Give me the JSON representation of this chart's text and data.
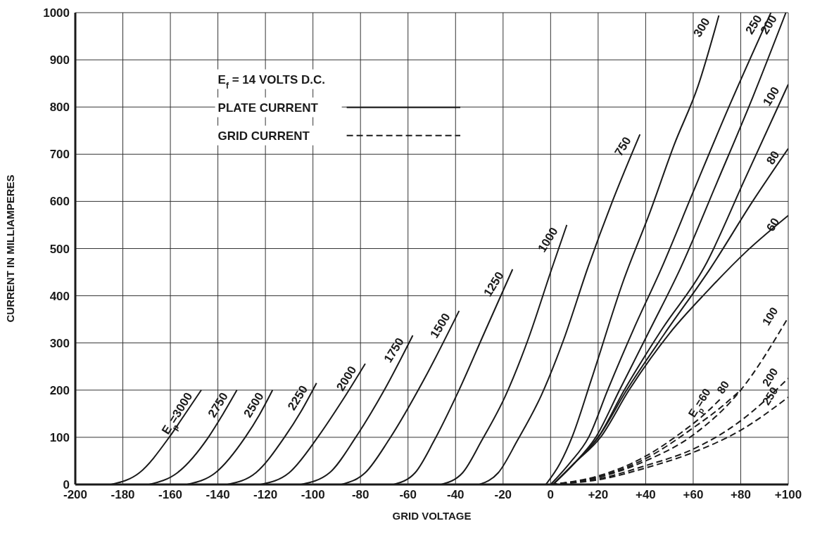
{
  "chart_data": {
    "type": "line",
    "xlabel": "GRID VOLTAGE",
    "ylabel": "CURRENT IN MILLIAMPERES",
    "xlim": [
      -200,
      100
    ],
    "xticks": [
      -200,
      -180,
      -160,
      -140,
      -120,
      -100,
      -80,
      -60,
      -40,
      -20,
      0,
      {
        "value": 20,
        "label": "+20"
      },
      {
        "value": 40,
        "label": "+40"
      },
      {
        "value": 60,
        "label": "+60"
      },
      {
        "value": 80,
        "label": "+80"
      },
      {
        "value": 100,
        "label": "+100"
      }
    ],
    "ylim": [
      0,
      1000
    ],
    "yticks": [
      0,
      100,
      200,
      300,
      400,
      500,
      600,
      700,
      800,
      900,
      1000
    ],
    "grid": true,
    "legend": false,
    "marker": "none",
    "line_style": "solid",
    "annotations": [
      "E$_{f}$ = 14 VOLTS D.C.",
      "PLATE CURRENT",
      "GRID CURRENT"
    ],
    "series": [
      {
        "name": "E$_{p}$=3000",
        "color": "#1a1a1a",
        "x": [
          -185,
          -173,
          -160.5,
          -154,
          -147
        ],
        "values": [
          0,
          25,
          100,
          148,
          200
        ]
      },
      {
        "name": "2750",
        "color": "#1a1a1a",
        "x": [
          -169,
          -157,
          -144,
          -138,
          -132
        ],
        "values": [
          0,
          25,
          100,
          148,
          200
        ]
      },
      {
        "name": "2500",
        "color": "#1a1a1a",
        "x": [
          -153,
          -141,
          -128.5,
          -122.5,
          -117
        ],
        "values": [
          0,
          25,
          100,
          148,
          200
        ]
      },
      {
        "name": "2250",
        "color": "#1a1a1a",
        "x": [
          -136,
          -124,
          -112,
          -105,
          -98.5
        ],
        "values": [
          0,
          25,
          100,
          155,
          215
        ]
      },
      {
        "name": "2000",
        "color": "#1a1a1a",
        "x": [
          -122,
          -110,
          -98,
          -88,
          -78
        ],
        "values": [
          0,
          25,
          100,
          175,
          256
        ]
      },
      {
        "name": "1750",
        "color": "#1a1a1a",
        "x": [
          -105,
          -93,
          -82,
          -70,
          -58
        ],
        "values": [
          0,
          25,
          100,
          200,
          316
        ]
      },
      {
        "name": "1500",
        "color": "#1a1a1a",
        "x": [
          -88,
          -78,
          -68,
          -53,
          -38.5
        ],
        "values": [
          0,
          25,
          95,
          225,
          368
        ]
      },
      {
        "name": "1250",
        "color": "#1a1a1a",
        "x": [
          -66,
          -57,
          -49,
          -39,
          -28,
          -16
        ],
        "values": [
          0,
          25,
          93,
          195,
          320,
          456
        ]
      },
      {
        "name": "1000",
        "color": "#1a1a1a",
        "x": [
          -46,
          -37,
          -29,
          -19,
          -9.5,
          0.4,
          6.8
        ],
        "values": [
          0,
          25,
          93,
          188,
          307,
          456,
          550
        ]
      },
      {
        "name": "750",
        "color": "#1a1a1a",
        "x": [
          -30,
          -22,
          -14,
          -4,
          5.5,
          15.7,
          26,
          37.6
        ],
        "values": [
          0,
          25,
          93,
          188,
          307,
          460,
          600,
          742
        ]
      },
      {
        "name": "300",
        "color": "#1a1a1a",
        "x": [
          -2,
          4,
          9,
          17,
          30.5,
          41.8,
          52,
          62,
          70.8
        ],
        "values": [
          0,
          45,
          100,
          220,
          430,
          577,
          720,
          844,
          994
        ]
      },
      {
        "name": "250",
        "color": "#1a1a1a",
        "x": [
          0,
          8,
          16,
          24,
          35,
          46.8,
          60,
          75,
          92.7
        ],
        "values": [
          0,
          45,
          100,
          200,
          330,
          460,
          620,
          800,
          1000
        ]
      },
      {
        "name": "200",
        "color": "#1a1a1a",
        "x": [
          1,
          10,
          19,
          29,
          42,
          54.8,
          70,
          85,
          99
        ],
        "values": [
          0,
          45,
          100,
          200,
          330,
          460,
          640,
          820,
          1000
        ]
      },
      {
        "name": "100",
        "color": "#1a1a1a",
        "x": [
          1,
          10,
          20,
          31,
          47,
          64.6,
          82,
          100
        ],
        "values": [
          0,
          45,
          100,
          200,
          330,
          460,
          650,
          848
        ]
      },
      {
        "name": "80",
        "color": "#1a1a1a",
        "x": [
          1,
          10,
          20,
          32,
          48,
          67.5,
          85,
          100
        ],
        "values": [
          0,
          45,
          100,
          200,
          320,
          460,
          600,
          712
        ]
      },
      {
        "name": "60",
        "color": "#1a1a1a",
        "x": [
          1,
          10,
          21,
          33,
          50,
          66,
          82,
          100
        ],
        "values": [
          0,
          45,
          100,
          200,
          320,
          410,
          492,
          570
        ]
      },
      {
        "name": "E$_{p}$=60",
        "color": "#1a1a1a",
        "line_style": "dashed",
        "x": [
          0,
          20,
          40,
          55,
          65,
          71.6
        ],
        "values": [
          0,
          18,
          60,
          110,
          150,
          182
        ]
      },
      {
        "name": "80",
        "color": "#1a1a1a",
        "line_style": "dashed",
        "x": [
          0,
          20,
          40,
          60,
          72,
          79.5
        ],
        "values": [
          0,
          16,
          55,
          120,
          165,
          198
        ]
      },
      {
        "name": "100",
        "color": "#1a1a1a",
        "line_style": "dashed",
        "x": [
          0,
          20,
          40,
          60,
          80,
          100
        ],
        "values": [
          0,
          15,
          50,
          105,
          200,
          354
        ]
      },
      {
        "name": "200",
        "color": "#1a1a1a",
        "line_style": "dashed",
        "x": [
          0,
          20,
          40,
          60,
          80,
          100
        ],
        "values": [
          0,
          12,
          40,
          75,
          135,
          225
        ]
      },
      {
        "name": "250",
        "color": "#1a1a1a",
        "line_style": "dashed",
        "x": [
          0,
          20,
          40,
          60,
          80,
          100
        ],
        "values": [
          0,
          10,
          35,
          68,
          115,
          185
        ]
      }
    ]
  }
}
